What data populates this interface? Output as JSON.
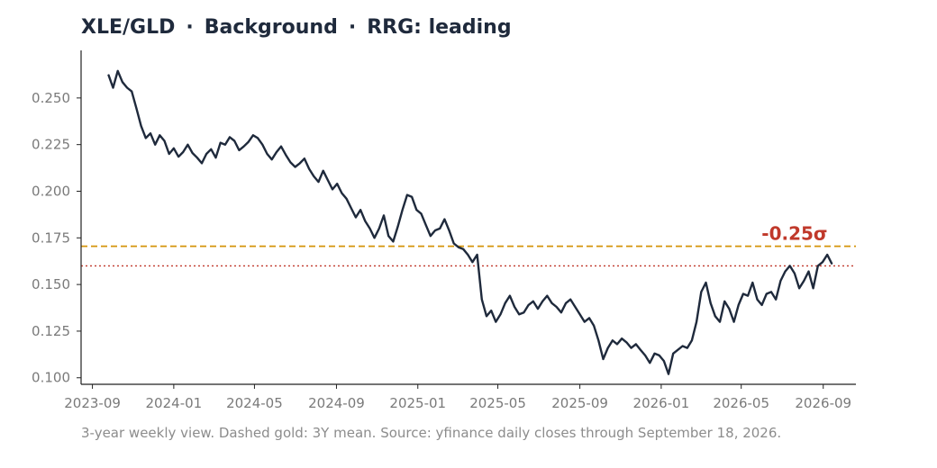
{
  "title": {
    "parts": [
      "XLE/GLD",
      "Background",
      "RRG: leading"
    ],
    "separator": "·"
  },
  "caption": "3-year weekly view. Dashed gold: 3Y mean. Source: yfinance daily closes through September 18, 2026.",
  "colors": {
    "series": "#1f2a3c",
    "mean_line": "#d4940a",
    "current_line": "#c0392b",
    "sigma_label": "#c0392b",
    "axis": "#222222",
    "tick_label": "#7a7a7a"
  },
  "chart_data": {
    "type": "line",
    "title": "XLE/GLD · Background · RRG: leading",
    "xlabel": "",
    "ylabel": "",
    "xlim": [
      "2023-08-15",
      "2026-10-20"
    ],
    "ylim": [
      0.0965,
      0.2755
    ],
    "x_ticks": [
      "2023-09",
      "2024-01",
      "2024-05",
      "2024-09",
      "2025-01",
      "2025-05",
      "2025-09",
      "2026-01",
      "2026-05",
      "2026-09"
    ],
    "y_ticks": [
      "0.100",
      "0.125",
      "0.150",
      "0.175",
      "0.200",
      "0.225",
      "0.250"
    ],
    "grid": false,
    "mean_line": {
      "value": 0.1705,
      "style": "dashed"
    },
    "current_line": {
      "value": 0.16,
      "style": "dotted"
    },
    "annotation": {
      "text": "-0.25σ",
      "date": "2026-07-20",
      "value": 0.174
    },
    "series": [
      {
        "points": [
          [
            "2023-09-25",
            0.2625
          ],
          [
            "2023-10-02",
            0.2555
          ],
          [
            "2023-10-09",
            0.2645
          ],
          [
            "2023-10-16",
            0.2585
          ],
          [
            "2023-10-23",
            0.2555
          ],
          [
            "2023-10-30",
            0.2535
          ],
          [
            "2023-11-06",
            0.2445
          ],
          [
            "2023-11-13",
            0.235
          ],
          [
            "2023-11-20",
            0.2285
          ],
          [
            "2023-11-27",
            0.231
          ],
          [
            "2023-12-04",
            0.225
          ],
          [
            "2023-12-11",
            0.23
          ],
          [
            "2023-12-18",
            0.227
          ],
          [
            "2023-12-25",
            0.22
          ],
          [
            "2024-01-01",
            0.223
          ],
          [
            "2024-01-08",
            0.2185
          ],
          [
            "2024-01-15",
            0.221
          ],
          [
            "2024-01-22",
            0.225
          ],
          [
            "2024-01-29",
            0.2205
          ],
          [
            "2024-02-05",
            0.218
          ],
          [
            "2024-02-12",
            0.215
          ],
          [
            "2024-02-19",
            0.22
          ],
          [
            "2024-02-26",
            0.2225
          ],
          [
            "2024-03-04",
            0.218
          ],
          [
            "2024-03-11",
            0.226
          ],
          [
            "2024-03-18",
            0.225
          ],
          [
            "2024-03-25",
            0.229
          ],
          [
            "2024-04-01",
            0.227
          ],
          [
            "2024-04-08",
            0.222
          ],
          [
            "2024-04-15",
            0.224
          ],
          [
            "2024-04-22",
            0.2265
          ],
          [
            "2024-04-29",
            0.23
          ],
          [
            "2024-05-06",
            0.2285
          ],
          [
            "2024-05-13",
            0.225
          ],
          [
            "2024-05-20",
            0.22
          ],
          [
            "2024-05-27",
            0.217
          ],
          [
            "2024-06-03",
            0.221
          ],
          [
            "2024-06-10",
            0.224
          ],
          [
            "2024-06-17",
            0.2195
          ],
          [
            "2024-06-24",
            0.2155
          ],
          [
            "2024-07-01",
            0.213
          ],
          [
            "2024-07-08",
            0.215
          ],
          [
            "2024-07-15",
            0.2175
          ],
          [
            "2024-07-22",
            0.212
          ],
          [
            "2024-07-29",
            0.208
          ],
          [
            "2024-08-05",
            0.205
          ],
          [
            "2024-08-12",
            0.211
          ],
          [
            "2024-08-19",
            0.206
          ],
          [
            "2024-08-26",
            0.201
          ],
          [
            "2024-09-02",
            0.204
          ],
          [
            "2024-09-09",
            0.199
          ],
          [
            "2024-09-16",
            0.196
          ],
          [
            "2024-09-23",
            0.191
          ],
          [
            "2024-09-30",
            0.186
          ],
          [
            "2024-10-07",
            0.19
          ],
          [
            "2024-10-14",
            0.184
          ],
          [
            "2024-10-21",
            0.18
          ],
          [
            "2024-10-28",
            0.175
          ],
          [
            "2024-11-04",
            0.18
          ],
          [
            "2024-11-11",
            0.187
          ],
          [
            "2024-11-18",
            0.176
          ],
          [
            "2024-11-25",
            0.173
          ],
          [
            "2024-12-02",
            0.181
          ],
          [
            "2024-12-09",
            0.19
          ],
          [
            "2024-12-16",
            0.198
          ],
          [
            "2024-12-23",
            0.197
          ],
          [
            "2024-12-30",
            0.19
          ],
          [
            "2025-01-06",
            0.188
          ],
          [
            "2025-01-13",
            0.182
          ],
          [
            "2025-01-20",
            0.176
          ],
          [
            "2025-01-27",
            0.179
          ],
          [
            "2025-02-03",
            0.18
          ],
          [
            "2025-02-10",
            0.185
          ],
          [
            "2025-02-17",
            0.179
          ],
          [
            "2025-02-24",
            0.172
          ],
          [
            "2025-03-03",
            0.17
          ],
          [
            "2025-03-10",
            0.169
          ],
          [
            "2025-03-17",
            0.166
          ],
          [
            "2025-03-24",
            0.162
          ],
          [
            "2025-03-31",
            0.166
          ],
          [
            "2025-04-07",
            0.142
          ],
          [
            "2025-04-14",
            0.133
          ],
          [
            "2025-04-21",
            0.136
          ],
          [
            "2025-04-28",
            0.13
          ],
          [
            "2025-05-05",
            0.134
          ],
          [
            "2025-05-12",
            0.14
          ],
          [
            "2025-05-19",
            0.144
          ],
          [
            "2025-05-26",
            0.138
          ],
          [
            "2025-06-02",
            0.134
          ],
          [
            "2025-06-09",
            0.135
          ],
          [
            "2025-06-16",
            0.139
          ],
          [
            "2025-06-23",
            0.141
          ],
          [
            "2025-06-30",
            0.137
          ],
          [
            "2025-07-07",
            0.141
          ],
          [
            "2025-07-14",
            0.144
          ],
          [
            "2025-07-21",
            0.14
          ],
          [
            "2025-07-28",
            0.138
          ],
          [
            "2025-08-04",
            0.135
          ],
          [
            "2025-08-11",
            0.14
          ],
          [
            "2025-08-18",
            0.142
          ],
          [
            "2025-08-25",
            0.138
          ],
          [
            "2025-09-01",
            0.134
          ],
          [
            "2025-09-08",
            0.13
          ],
          [
            "2025-09-15",
            0.132
          ],
          [
            "2025-09-22",
            0.128
          ],
          [
            "2025-09-29",
            0.12
          ],
          [
            "2025-10-06",
            0.11
          ],
          [
            "2025-10-13",
            0.116
          ],
          [
            "2025-10-20",
            0.12
          ],
          [
            "2025-10-27",
            0.118
          ],
          [
            "2025-11-03",
            0.121
          ],
          [
            "2025-11-10",
            0.119
          ],
          [
            "2025-11-17",
            0.116
          ],
          [
            "2025-11-24",
            0.118
          ],
          [
            "2025-12-01",
            0.115
          ],
          [
            "2025-12-08",
            0.112
          ],
          [
            "2025-12-15",
            0.108
          ],
          [
            "2025-12-22",
            0.113
          ],
          [
            "2025-12-29",
            0.112
          ],
          [
            "2026-01-05",
            0.109
          ],
          [
            "2026-01-12",
            0.102
          ],
          [
            "2026-01-19",
            0.113
          ],
          [
            "2026-01-26",
            0.115
          ],
          [
            "2026-02-02",
            0.117
          ],
          [
            "2026-02-09",
            0.116
          ],
          [
            "2026-02-16",
            0.12
          ],
          [
            "2026-02-23",
            0.13
          ],
          [
            "2026-03-02",
            0.146
          ],
          [
            "2026-03-09",
            0.151
          ],
          [
            "2026-03-16",
            0.14
          ],
          [
            "2026-03-23",
            0.133
          ],
          [
            "2026-03-30",
            0.13
          ],
          [
            "2026-04-06",
            0.141
          ],
          [
            "2026-04-13",
            0.137
          ],
          [
            "2026-04-20",
            0.13
          ],
          [
            "2026-04-27",
            0.139
          ],
          [
            "2026-05-04",
            0.145
          ],
          [
            "2026-05-11",
            0.144
          ],
          [
            "2026-05-18",
            0.151
          ],
          [
            "2026-05-25",
            0.142
          ],
          [
            "2026-06-01",
            0.139
          ],
          [
            "2026-06-08",
            0.145
          ],
          [
            "2026-06-15",
            0.146
          ],
          [
            "2026-06-22",
            0.142
          ],
          [
            "2026-06-29",
            0.152
          ],
          [
            "2026-07-06",
            0.157
          ],
          [
            "2026-07-13",
            0.16
          ],
          [
            "2026-07-20",
            0.156
          ],
          [
            "2026-07-27",
            0.148
          ],
          [
            "2026-08-03",
            0.152
          ],
          [
            "2026-08-10",
            0.157
          ],
          [
            "2026-08-17",
            0.148
          ],
          [
            "2026-08-24",
            0.16
          ],
          [
            "2026-08-31",
            0.162
          ],
          [
            "2026-09-07",
            0.166
          ],
          [
            "2026-09-14",
            0.161
          ]
        ]
      }
    ]
  }
}
